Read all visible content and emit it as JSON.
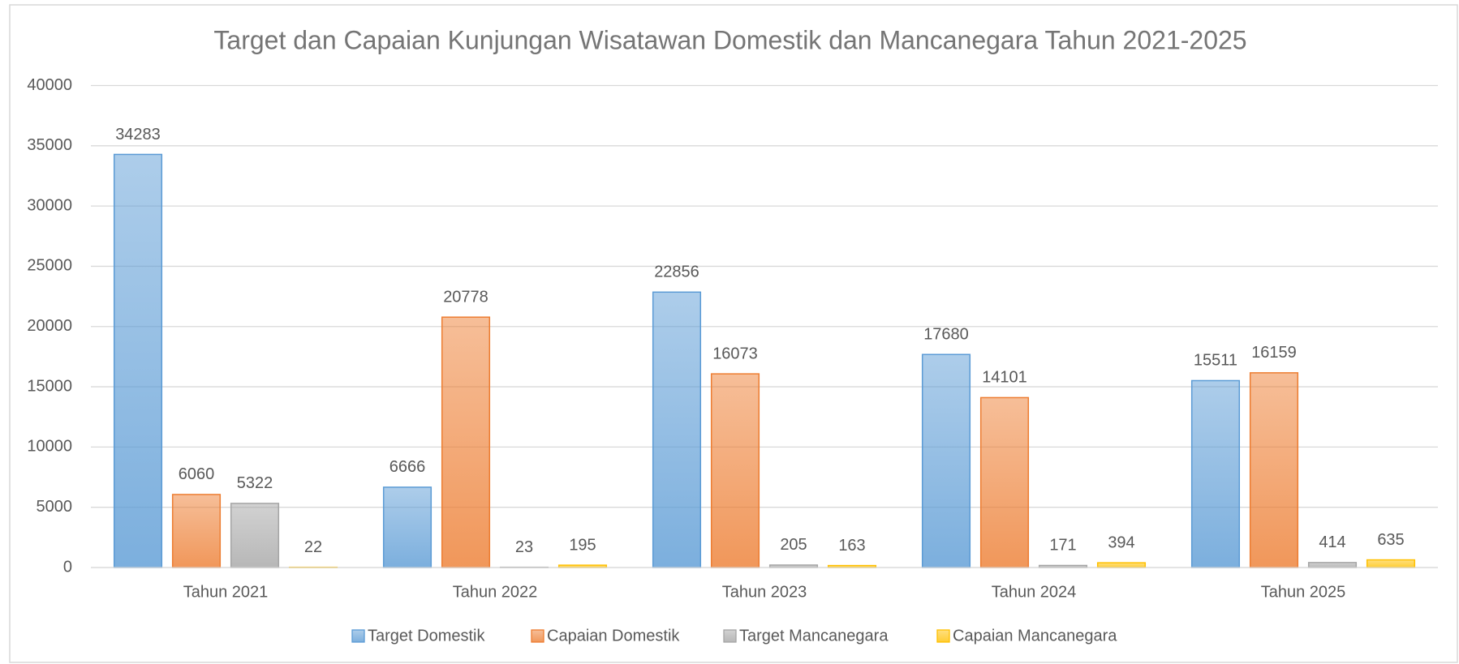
{
  "chart_data": {
    "type": "bar",
    "title": "Target dan Capaian Kunjungan Wisatawan Domestik dan Mancanegara Tahun 2021-2025",
    "categories": [
      "Tahun 2021",
      "Tahun 2022",
      "Tahun 2023",
      "Tahun 2024",
      "Tahun 2025"
    ],
    "series": [
      {
        "name": "Target Domestik",
        "color": "#5b9bd5",
        "values": [
          34283,
          6666,
          22856,
          17680,
          15511
        ]
      },
      {
        "name": "Capaian Domestik",
        "color": "#ed7d31",
        "values": [
          6060,
          20778,
          16073,
          14101,
          16159
        ]
      },
      {
        "name": "Target Mancanegara",
        "color": "#a5a5a5",
        "values": [
          5322,
          23,
          205,
          171,
          414
        ]
      },
      {
        "name": "Capaian Mancanegara",
        "color": "#ffc000",
        "values": [
          22,
          195,
          163,
          394,
          635
        ]
      }
    ],
    "ylim": [
      0,
      40000
    ],
    "yticks": [
      0,
      5000,
      10000,
      15000,
      20000,
      25000,
      30000,
      35000,
      40000
    ],
    "grid": true,
    "legend": "bottom"
  }
}
